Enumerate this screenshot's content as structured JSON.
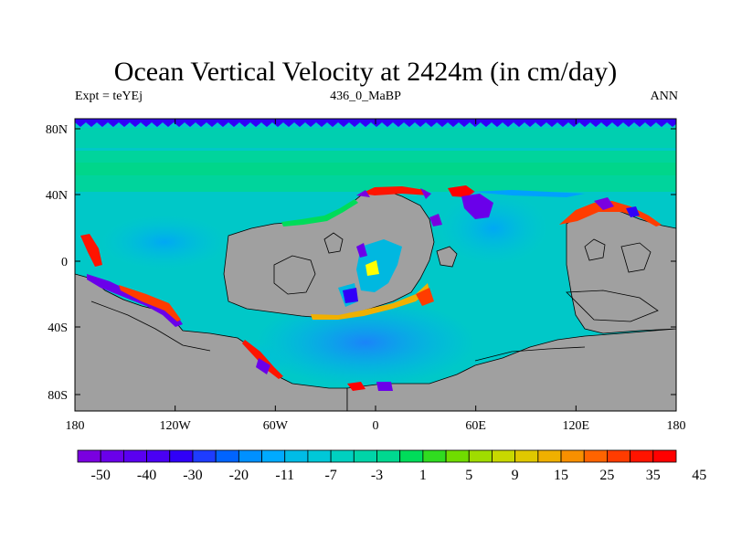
{
  "title": "Ocean Vertical Velocity at 2424m (in cm/day)",
  "left_label": "Expt = teYEj",
  "center_label": "436_0_MaBP",
  "right_label": "ANN",
  "map": {
    "lon_ticks": [
      "180",
      "120W",
      "60W",
      "0",
      "60E",
      "120E",
      "180"
    ],
    "lat_ticks": [
      "80N",
      "40N",
      "0",
      "40S",
      "80S"
    ],
    "land_color": "#a0a0a0",
    "ocean_base_color": "#00c8c8"
  },
  "colorbar": {
    "labels": [
      "-50",
      "-40",
      "-30",
      "-20",
      "-11",
      "-7",
      "-3",
      "1",
      "5",
      "9",
      "15",
      "25",
      "35",
      "45"
    ],
    "colors": [
      "#7a00e0",
      "#6a00ea",
      "#5a00f0",
      "#4a00f5",
      "#3000f8",
      "#1e3cff",
      "#0064ff",
      "#0090ff",
      "#00aaff",
      "#00bce6",
      "#00c8d8",
      "#00d0c0",
      "#00d4a8",
      "#00d890",
      "#00dc5a",
      "#30dc20",
      "#70dc00",
      "#a0dc00",
      "#c8d800",
      "#e0c800",
      "#f0b000",
      "#f89000",
      "#ff6400",
      "#ff3c00",
      "#ff1400",
      "#ff0000"
    ]
  }
}
